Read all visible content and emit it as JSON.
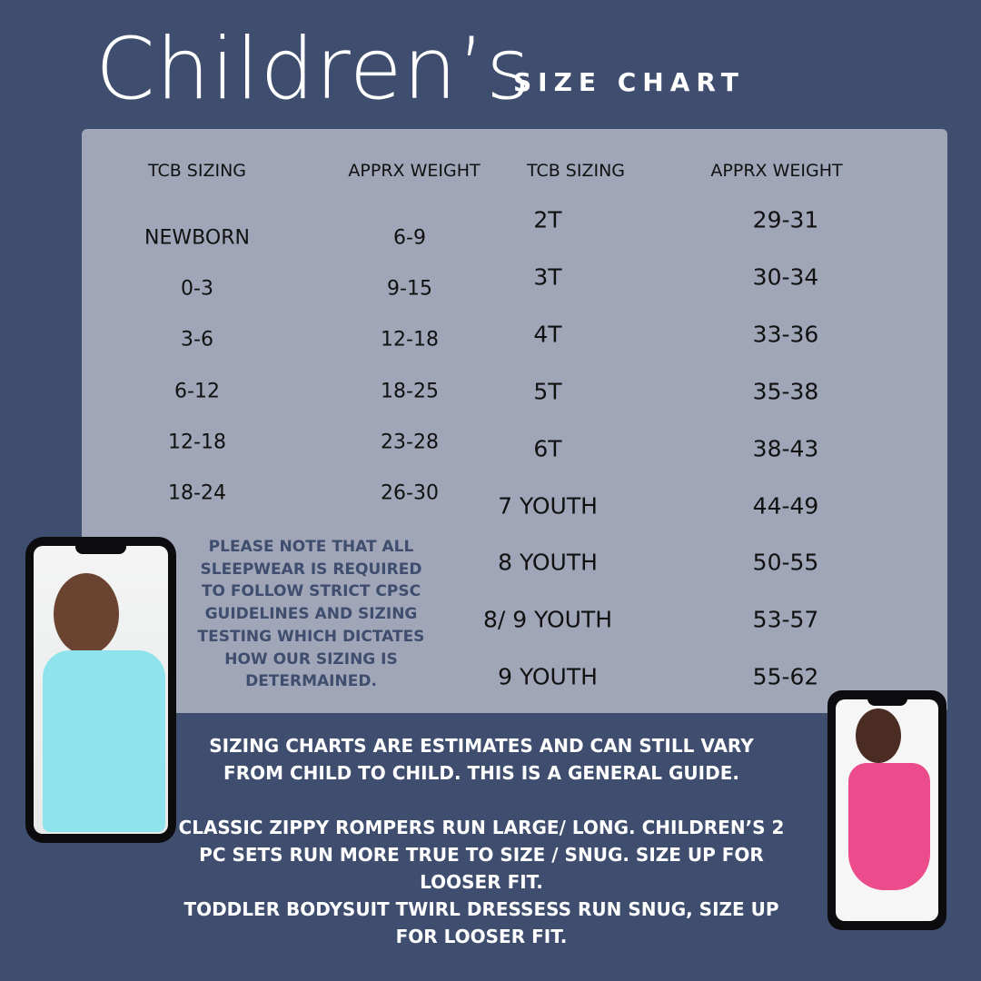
{
  "title": "Children’s",
  "subtitle": "SIZE CHART",
  "table": {
    "left": {
      "headers": [
        "TCB SIZING",
        "APPRX WEIGHT"
      ],
      "rows": [
        [
          "NEWBORN",
          "6-9"
        ],
        [
          "0-3",
          "9-15"
        ],
        [
          "3-6",
          "12-18"
        ],
        [
          "6-12",
          "18-25"
        ],
        [
          "12-18",
          "23-28"
        ],
        [
          "18-24",
          "26-30"
        ]
      ]
    },
    "right": {
      "headers": [
        "TCB SIZING",
        "APPRX WEIGHT"
      ],
      "rows": [
        [
          "2T",
          "29-31"
        ],
        [
          "3T",
          "30-34"
        ],
        [
          "4T",
          "33-36"
        ],
        [
          "5T",
          "35-38"
        ],
        [
          "6T",
          "38-43"
        ],
        [
          "7 YOUTH",
          "44-49"
        ],
        [
          "8 YOUTH",
          "50-55"
        ],
        [
          "8/ 9 YOUTH",
          "53-57"
        ],
        [
          "9 YOUTH",
          "55-62"
        ]
      ]
    }
  },
  "note": "PLEASE NOTE THAT ALL SLEEPWEAR IS REQUIRED TO FOLLOW STRICT CPSC GUIDELINES AND SIZING TESTING WHICH DICTATES HOW OUR SIZING IS DETERMAINED.",
  "bottom_notes": [
    "SIZING CHARTS ARE ESTIMATES AND CAN STILL VARY FROM CHILD TO CHILD. THIS IS A GENERAL GUIDE.",
    "CLASSIC ZIPPY ROMPERS RUN LARGE/ LONG. CHILDREN’S 2 PC SETS RUN MORE TRUE TO SIZE / SNUG. SIZE UP FOR LOOSER FIT.",
    "TODDLER BODYSUIT TWIRL DRESSESS RUN SNUG, SIZE UP FOR LOOSER FIT."
  ],
  "colors": {
    "background": "#3f4d6e",
    "panel": "#a0a6b8",
    "note_text": "#3f4d6e"
  }
}
